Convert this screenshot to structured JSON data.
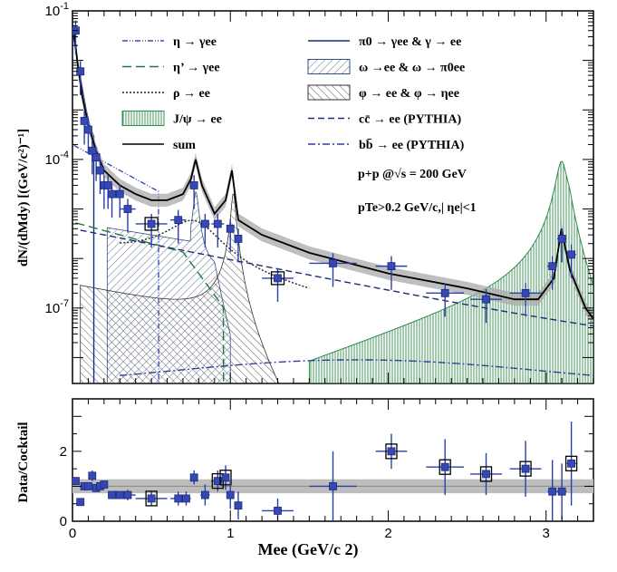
{
  "chart_data": [
    {
      "type": "line",
      "panel": "top",
      "ylabel": "dN/(dMdy) [(GeV/c²)⁻¹]",
      "yscale": "log",
      "ylim": [
        3e-09,
        0.1
      ],
      "xlim": [
        0,
        3.3
      ],
      "y_ticks": [
        {
          "value": 0.1,
          "label": "10-1"
        },
        {
          "value": 0.0001,
          "label": "10-4"
        },
        {
          "value": 1e-07,
          "label": "10-7"
        }
      ],
      "legend_placement": "top",
      "legend": [
        {
          "label": "η → γee",
          "style": "dash-dot-dot",
          "color": "#3b4fb0"
        },
        {
          "label": "η’ → γee",
          "style": "long-dash",
          "color": "#1f7a3a"
        },
        {
          "label": "ρ → ee",
          "style": "dotted",
          "color": "#222222"
        },
        {
          "label": "J/ψ → ee",
          "style": "vertical-hatch-fill",
          "color": "#2e8b4a"
        },
        {
          "label": "sum",
          "style": "solid",
          "color": "#000000"
        },
        {
          "label": "π0 → γee & γ → ee",
          "style": "solid",
          "color": "#1b2b7a"
        },
        {
          "label": "ω →ee & ω → π0ee",
          "style": "diagonal-hatch-fill",
          "color": "#34507a"
        },
        {
          "label": "φ → ee & φ → ηee",
          "style": "back-diagonal-hatch-fill",
          "color": "#333333"
        },
        {
          "label": "cc̄ → ee (PYTHIA)",
          "style": "dashed",
          "color": "#1b2b7a"
        },
        {
          "label": "bb̄ → ee (PYTHIA)",
          "style": "dash-dot",
          "color": "#2f3f9a"
        }
      ],
      "annotations": [
        "p+p @√s = 200 GeV",
        "pTe>0.2 GeV/c,| ηe|<1"
      ],
      "data_points": {
        "x": [
          0.02,
          0.05,
          0.075,
          0.1,
          0.125,
          0.15,
          0.175,
          0.2,
          0.225,
          0.25,
          0.3,
          0.35,
          0.5,
          0.67,
          0.77,
          0.84,
          0.92,
          1.0,
          1.05,
          1.3,
          1.65,
          2.02,
          2.36,
          2.62,
          2.87,
          3.04,
          3.1,
          3.16
        ],
        "xerr": [
          0.01,
          0.01,
          0.01,
          0.01,
          0.01,
          0.01,
          0.01,
          0.01,
          0.01,
          0.025,
          0.025,
          0.05,
          0.1,
          0.05,
          0.02,
          0.03,
          0.04,
          0.02,
          0.02,
          0.1,
          0.15,
          0.1,
          0.12,
          0.1,
          0.1,
          0.03,
          0.03,
          0.03
        ],
        "y": [
          0.04,
          0.006,
          0.0006,
          0.0004,
          0.00015,
          0.00011,
          6e-05,
          3e-05,
          3e-05,
          2e-05,
          2e-05,
          1e-05,
          5e-06,
          6e-06,
          3e-05,
          5e-06,
          5e-06,
          4e-06,
          2.5e-06,
          4e-07,
          8e-07,
          7e-07,
          2e-07,
          1.5e-07,
          2e-07,
          7e-07,
          2.5e-06,
          1.2e-06
        ],
        "systematic_box": [
          false,
          false,
          false,
          false,
          false,
          false,
          false,
          false,
          false,
          false,
          false,
          false,
          true,
          false,
          false,
          false,
          false,
          false,
          false,
          true,
          false,
          false,
          false,
          false,
          false,
          false,
          false,
          false
        ]
      },
      "curves": {
        "sum": {
          "x": [
            0.01,
            0.03,
            0.06,
            0.1,
            0.15,
            0.2,
            0.3,
            0.4,
            0.5,
            0.6,
            0.7,
            0.75,
            0.78,
            0.82,
            0.9,
            0.97,
            1.01,
            1.05,
            1.2,
            1.5,
            2.0,
            2.5,
            2.8,
            2.95,
            3.05,
            3.097,
            3.15,
            3.25,
            3.3
          ],
          "y": [
            0.04,
            0.01,
            0.002,
            0.0005,
            0.00015,
            6e-05,
            3e-05,
            2e-05,
            1.5e-05,
            1.5e-05,
            2e-05,
            4e-05,
            0.0001,
            3e-05,
            8e-06,
            1.5e-05,
            6e-05,
            6e-06,
            3e-06,
            1.3e-06,
            5e-07,
            2.5e-07,
            1.5e-07,
            1.5e-07,
            4e-07,
            4e-06,
            6e-07,
            1e-07,
            6e-08
          ]
        }
      }
    },
    {
      "type": "scatter",
      "panel": "bottom",
      "ylabel": "Data/Cocktail",
      "xlabel": "Mee (GeV/c 2)",
      "xlim": [
        0,
        3.3
      ],
      "ylim": [
        0,
        3.5
      ],
      "x_ticks": [
        0,
        1,
        2,
        3
      ],
      "y_ticks": [
        0,
        2
      ],
      "band": {
        "y_low": 0.8,
        "y_high": 1.2
      },
      "points": {
        "x": [
          0.02,
          0.05,
          0.075,
          0.1,
          0.125,
          0.15,
          0.175,
          0.2,
          0.25,
          0.3,
          0.35,
          0.5,
          0.67,
          0.72,
          0.77,
          0.84,
          0.92,
          0.97,
          1.0,
          1.05,
          1.3,
          1.65,
          2.02,
          2.36,
          2.62,
          2.87,
          3.04,
          3.1,
          3.16
        ],
        "xerr": [
          0.01,
          0.01,
          0.01,
          0.01,
          0.01,
          0.01,
          0.01,
          0.02,
          0.025,
          0.025,
          0.05,
          0.1,
          0.05,
          0.03,
          0.02,
          0.03,
          0.04,
          0.02,
          0.02,
          0.02,
          0.1,
          0.15,
          0.1,
          0.12,
          0.1,
          0.1,
          0.03,
          0.03,
          0.03
        ],
        "y": [
          1.15,
          0.55,
          1.0,
          1.0,
          1.3,
          0.95,
          1.0,
          1.05,
          0.75,
          0.75,
          0.75,
          0.65,
          0.65,
          0.65,
          1.25,
          0.75,
          1.15,
          1.25,
          0.75,
          0.45,
          0.3,
          1.0,
          2.0,
          1.55,
          1.35,
          1.5,
          0.85,
          0.85,
          1.65
        ],
        "yerr": [
          0.1,
          0.1,
          0.1,
          0.1,
          0.15,
          0.1,
          0.1,
          0.1,
          0.1,
          0.1,
          0.15,
          0.2,
          0.2,
          0.2,
          0.2,
          0.3,
          0.3,
          0.35,
          0.4,
          0.4,
          0.35,
          1.0,
          0.5,
          0.8,
          0.6,
          0.8,
          0.9,
          0.8,
          1.2
        ],
        "systematic_box": [
          false,
          false,
          false,
          false,
          false,
          false,
          false,
          false,
          false,
          false,
          false,
          true,
          false,
          false,
          false,
          false,
          true,
          true,
          false,
          false,
          false,
          false,
          true,
          true,
          true,
          true,
          false,
          false,
          true
        ]
      }
    }
  ]
}
